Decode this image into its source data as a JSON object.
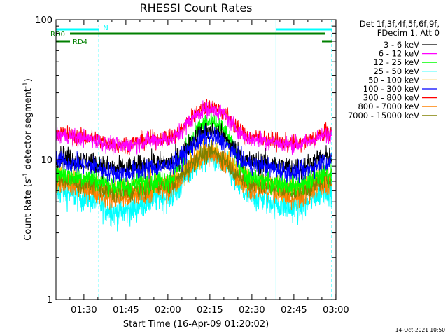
{
  "chart_data": {
    "type": "line",
    "title": "RHESSI Count Rates",
    "xlabel": "Start Time (16-Apr-09 01:20:02)",
    "ylabel": "Count Rate (s",
    "ylabel_sup": "-1",
    "ylabel_tail": " detector segment",
    "ylabel_sup2": "-1",
    "ylabel_end": ")",
    "xlim_minutes": [
      0,
      100
    ],
    "ylim": [
      1,
      100
    ],
    "yscale": "log",
    "x_ticks": [
      {
        "label": "01:30",
        "minute": 9.97
      },
      {
        "label": "01:45",
        "minute": 24.97
      },
      {
        "label": "02:00",
        "minute": 39.97
      },
      {
        "label": "02:15",
        "minute": 54.97
      },
      {
        "label": "02:30",
        "minute": 69.97
      },
      {
        "label": "02:45",
        "minute": 84.97
      },
      {
        "label": "03:00",
        "minute": 99.97
      }
    ],
    "y_ticks": [
      {
        "label": "1",
        "value": 1
      },
      {
        "label": "10",
        "value": 10
      },
      {
        "label": "100",
        "value": 100
      }
    ],
    "legend_header": [
      "Det 1f,3f,4f,5f,6f,9f,",
      "FDecim 1, Att 0"
    ],
    "legend_position": "right",
    "series": [
      {
        "name": "3 - 6 keV",
        "color": "#000000",
        "base": [
          10.5,
          9.8,
          8.6,
          9.5,
          16.0,
          9.6,
          8.7,
          10.5
        ],
        "noise": 0.09
      },
      {
        "name": "6 - 12 keV",
        "color": "#ff00ff",
        "base": [
          15.0,
          14.2,
          12.5,
          14.0,
          23.0,
          14.0,
          12.8,
          15.0
        ],
        "noise": 0.07
      },
      {
        "name": "12 - 25 keV",
        "color": "#00ff00",
        "base": [
          8.0,
          7.5,
          6.5,
          7.2,
          18.5,
          7.2,
          6.6,
          8.0
        ],
        "noise": 0.09
      },
      {
        "name": "25 - 50 keV",
        "color": "#00ffff",
        "base": [
          6.0,
          5.4,
          4.2,
          5.5,
          10.5,
          5.4,
          4.5,
          6.2
        ],
        "noise": 0.12
      },
      {
        "name": "50 - 100 keV",
        "color": "#ffbb00",
        "base": [
          7.5,
          6.9,
          6.0,
          6.8,
          11.5,
          6.9,
          6.1,
          7.5
        ],
        "noise": 0.1
      },
      {
        "name": "100 - 300 keV",
        "color": "#0000ff",
        "base": [
          9.8,
          9.2,
          8.0,
          9.0,
          14.5,
          9.1,
          8.1,
          9.8
        ],
        "noise": 0.08
      },
      {
        "name": "300 - 800 keV",
        "color": "#ff0000",
        "base": [
          15.5,
          14.5,
          12.8,
          14.3,
          24.0,
          14.3,
          13.0,
          15.5
        ],
        "noise": 0.07
      },
      {
        "name": "800 - 7000 keV",
        "color": "#ff8000",
        "base": [
          6.8,
          6.2,
          5.3,
          6.2,
          11.0,
          6.2,
          5.4,
          6.8
        ],
        "noise": 0.1
      },
      {
        "name": "7000 - 15000 keV",
        "color": "#808000",
        "base": [
          7.3,
          6.7,
          5.8,
          6.6,
          11.2,
          6.7,
          5.9,
          7.3
        ],
        "noise": 0.08
      }
    ],
    "base_minutes": [
      0,
      10,
      22,
      40,
      55,
      70,
      86,
      98
    ],
    "night_intervals": [
      {
        "start_minute": -2,
        "end_minute": 15.3,
        "label": "N"
      },
      {
        "start_minute": 78.6,
        "end_minute": 98.5,
        "label": ""
      }
    ],
    "saa_marker_minute": 0,
    "dashed_markers_minutes": [
      15.3,
      98.5
    ],
    "solid_markers_minutes": [
      0,
      78.6
    ],
    "rd_flags": [
      {
        "label": "RD0",
        "segments": [
          [
            5,
            96
          ]
        ]
      },
      {
        "label": "RD4",
        "segments": [
          [
            0,
            5
          ],
          [
            95,
            98.5
          ]
        ]
      }
    ]
  },
  "timestamp": "14-Oct-2021 10:50",
  "colors": {
    "night": "#00ffff",
    "markers": "#00ffff",
    "flags": "#008000",
    "axis": "#000000"
  }
}
